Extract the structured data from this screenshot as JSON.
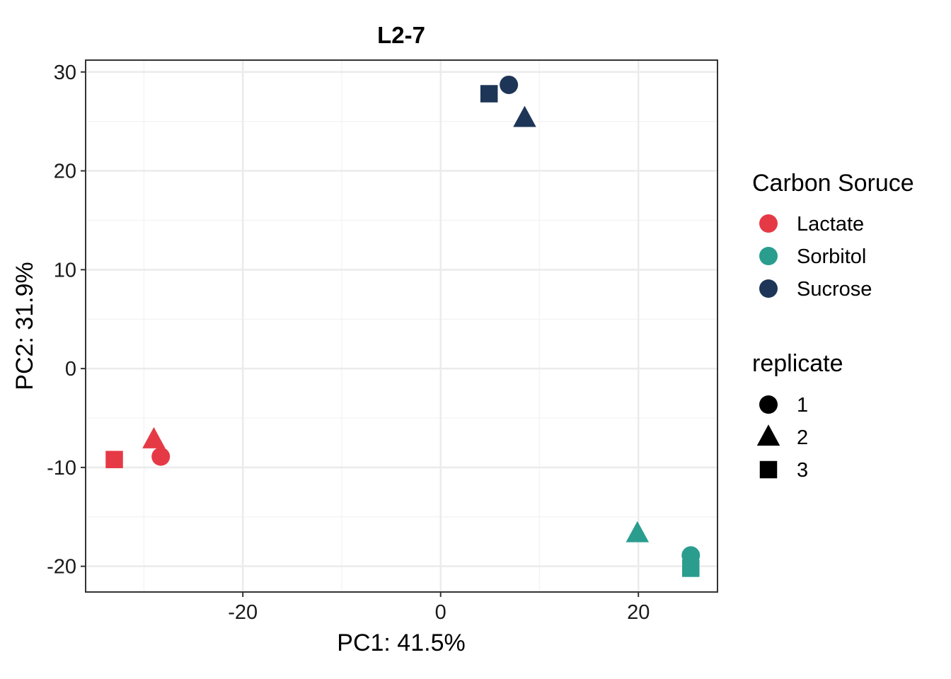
{
  "chart_data": {
    "type": "scatter",
    "title": "L2-7",
    "xlabel": "PC1: 41.5%",
    "ylabel": "PC2: 31.9%",
    "xlim": [
      -35.9,
      28
    ],
    "ylim": [
      -22.6,
      31.2
    ],
    "x_ticks": [
      -20,
      0,
      20
    ],
    "y_ticks": [
      -20,
      -10,
      0,
      10,
      20,
      30
    ],
    "x_tick_labels": [
      "-20",
      "0",
      "20"
    ],
    "y_tick_labels": [
      "-20",
      "-10",
      "0",
      "10",
      "20",
      "30"
    ],
    "grid": true,
    "color_legend": {
      "title": "Carbon Soruce",
      "items": [
        {
          "label": "Lactate",
          "color": "#E63946"
        },
        {
          "label": "Sorbitol",
          "color": "#2A9D8F"
        },
        {
          "label": "Sucrose",
          "color": "#1D3557"
        }
      ]
    },
    "shape_legend": {
      "title": "replicate",
      "items": [
        {
          "label": "1",
          "shape": "circle"
        },
        {
          "label": "2",
          "shape": "triangle"
        },
        {
          "label": "3",
          "shape": "square"
        }
      ]
    },
    "points": [
      {
        "group": "Lactate",
        "replicate": "1",
        "x": -28.3,
        "y": -8.9
      },
      {
        "group": "Lactate",
        "replicate": "2",
        "x": -29.0,
        "y": -7.2
      },
      {
        "group": "Lactate",
        "replicate": "3",
        "x": -33.0,
        "y": -9.2
      },
      {
        "group": "Sorbitol",
        "replicate": "1",
        "x": 25.3,
        "y": -18.9
      },
      {
        "group": "Sorbitol",
        "replicate": "2",
        "x": 19.9,
        "y": -16.7
      },
      {
        "group": "Sorbitol",
        "replicate": "3",
        "x": 25.3,
        "y": -20.2
      },
      {
        "group": "Sucrose",
        "replicate": "1",
        "x": 6.9,
        "y": 28.7
      },
      {
        "group": "Sucrose",
        "replicate": "2",
        "x": 8.5,
        "y": 25.3
      },
      {
        "group": "Sucrose",
        "replicate": "3",
        "x": 4.9,
        "y": 27.8
      }
    ]
  }
}
